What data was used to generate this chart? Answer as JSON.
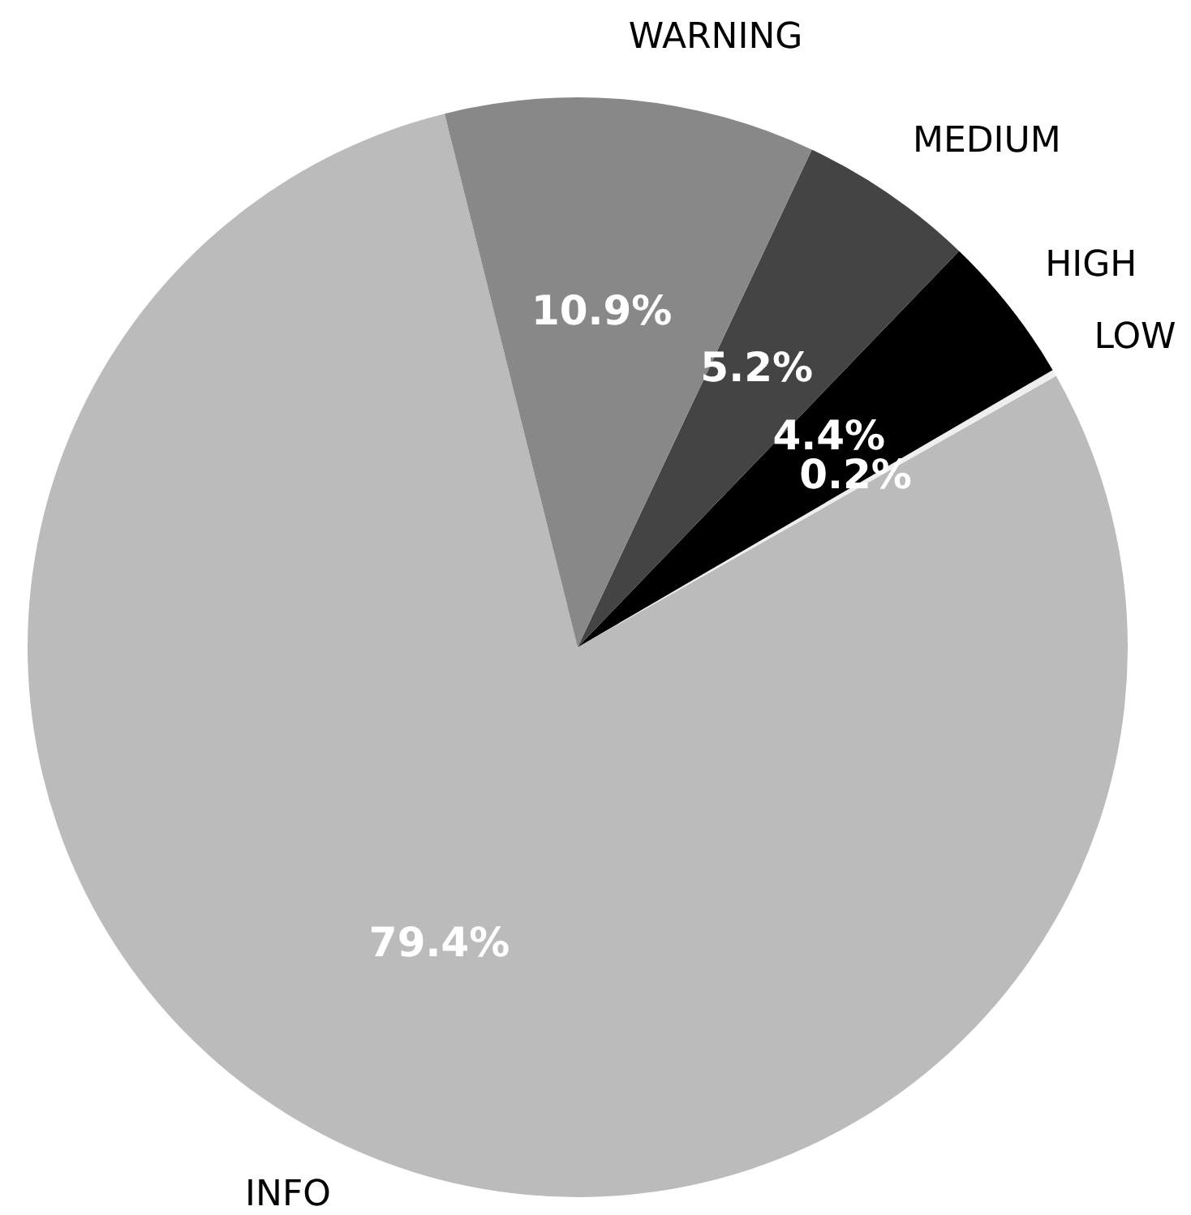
{
  "chart_data": {
    "type": "pie",
    "categories": [
      "INFO",
      "LOW",
      "HIGH",
      "MEDIUM",
      "WARNING"
    ],
    "values": [
      79.4,
      0.2,
      4.4,
      5.2,
      10.9
    ],
    "colors": [
      "#bbbbbb",
      "#eeeeee",
      "#000000",
      "#444444",
      "#888888"
    ],
    "value_labels": [
      "79.4%",
      "0.2%",
      "4.4%",
      "5.2%",
      "10.9%"
    ],
    "legend": false
  }
}
